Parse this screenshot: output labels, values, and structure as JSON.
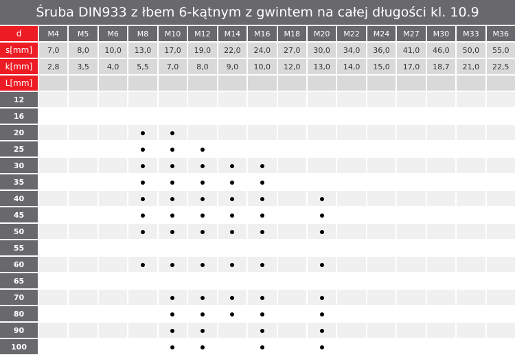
{
  "title": "Śruba DIN933 z łbem 6-kątnym z gwintem na całej długości kl. 10.9",
  "colors": {
    "title_bg": "#69686c",
    "label_red": "#ed1c24",
    "spec_row": "#d9d9d9",
    "stripe_row": "#eff0ef"
  },
  "header": {
    "d_label": "d",
    "s_label": "s[mm]",
    "k_label": "k[mm]",
    "L_label": "L[mm]"
  },
  "sizes": [
    "M4",
    "M5",
    "M6",
    "M8",
    "M10",
    "M12",
    "M14",
    "M16",
    "M18",
    "M20",
    "M22",
    "M24",
    "M27",
    "M30",
    "M33",
    "M36"
  ],
  "s": [
    "7,0",
    "8,0",
    "10,0",
    "13,0",
    "17,0",
    "19,0",
    "22,0",
    "24,0",
    "27,0",
    "30,0",
    "34,0",
    "36,0",
    "41,0",
    "46,0",
    "50,0",
    "55,0"
  ],
  "k": [
    "2,8",
    "3,5",
    "4,0",
    "5,5",
    "7,0",
    "8,0",
    "9,0",
    "10,0",
    "12,0",
    "13,0",
    "14,0",
    "15,0",
    "17,0",
    "18,7",
    "21,0",
    "22,5"
  ],
  "availability_icon": "dot",
  "lengths": [
    {
      "L": "12",
      "available": []
    },
    {
      "L": "16",
      "available": []
    },
    {
      "L": "20",
      "available": [
        "M8",
        "M10"
      ]
    },
    {
      "L": "25",
      "available": [
        "M8",
        "M10",
        "M12"
      ]
    },
    {
      "L": "30",
      "available": [
        "M8",
        "M10",
        "M12",
        "M14",
        "M16"
      ]
    },
    {
      "L": "35",
      "available": [
        "M8",
        "M10",
        "M12",
        "M14",
        "M16"
      ]
    },
    {
      "L": "40",
      "available": [
        "M8",
        "M10",
        "M12",
        "M14",
        "M16",
        "M20"
      ]
    },
    {
      "L": "45",
      "available": [
        "M8",
        "M10",
        "M12",
        "M14",
        "M16",
        "M20"
      ]
    },
    {
      "L": "50",
      "available": [
        "M8",
        "M10",
        "M12",
        "M14",
        "M16",
        "M20"
      ]
    },
    {
      "L": "55",
      "available": []
    },
    {
      "L": "60",
      "available": [
        "M8",
        "M10",
        "M12",
        "M14",
        "M16",
        "M20"
      ]
    },
    {
      "L": "65",
      "available": []
    },
    {
      "L": "70",
      "available": [
        "M10",
        "M12",
        "M14",
        "M16",
        "M20"
      ]
    },
    {
      "L": "80",
      "available": [
        "M10",
        "M12",
        "M14",
        "M16",
        "M20"
      ]
    },
    {
      "L": "90",
      "available": [
        "M10",
        "M12",
        "M16",
        "M20"
      ]
    },
    {
      "L": "100",
      "available": [
        "M10",
        "M12",
        "M16",
        "M20"
      ]
    }
  ]
}
